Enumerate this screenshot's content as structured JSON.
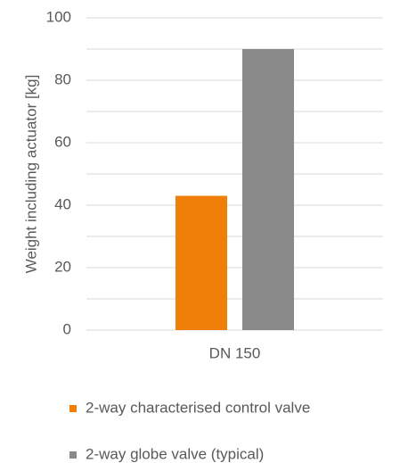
{
  "chart_data": {
    "type": "bar",
    "y_label": "Weight including actuator [kg]",
    "categories": [
      "DN 150"
    ],
    "series": [
      {
        "name": "2-way characterised control valve",
        "color": "#f07f09",
        "values": [
          43
        ]
      },
      {
        "name": "2-way globe valve (typical)",
        "color": "#898989",
        "values": [
          90
        ]
      }
    ],
    "ylim": [
      0,
      100
    ],
    "yticks": [
      0,
      20,
      40,
      60,
      80,
      100
    ],
    "minor_yticks": [
      10,
      30,
      50,
      70,
      90
    ],
    "grid": true,
    "legend": "bottom"
  }
}
